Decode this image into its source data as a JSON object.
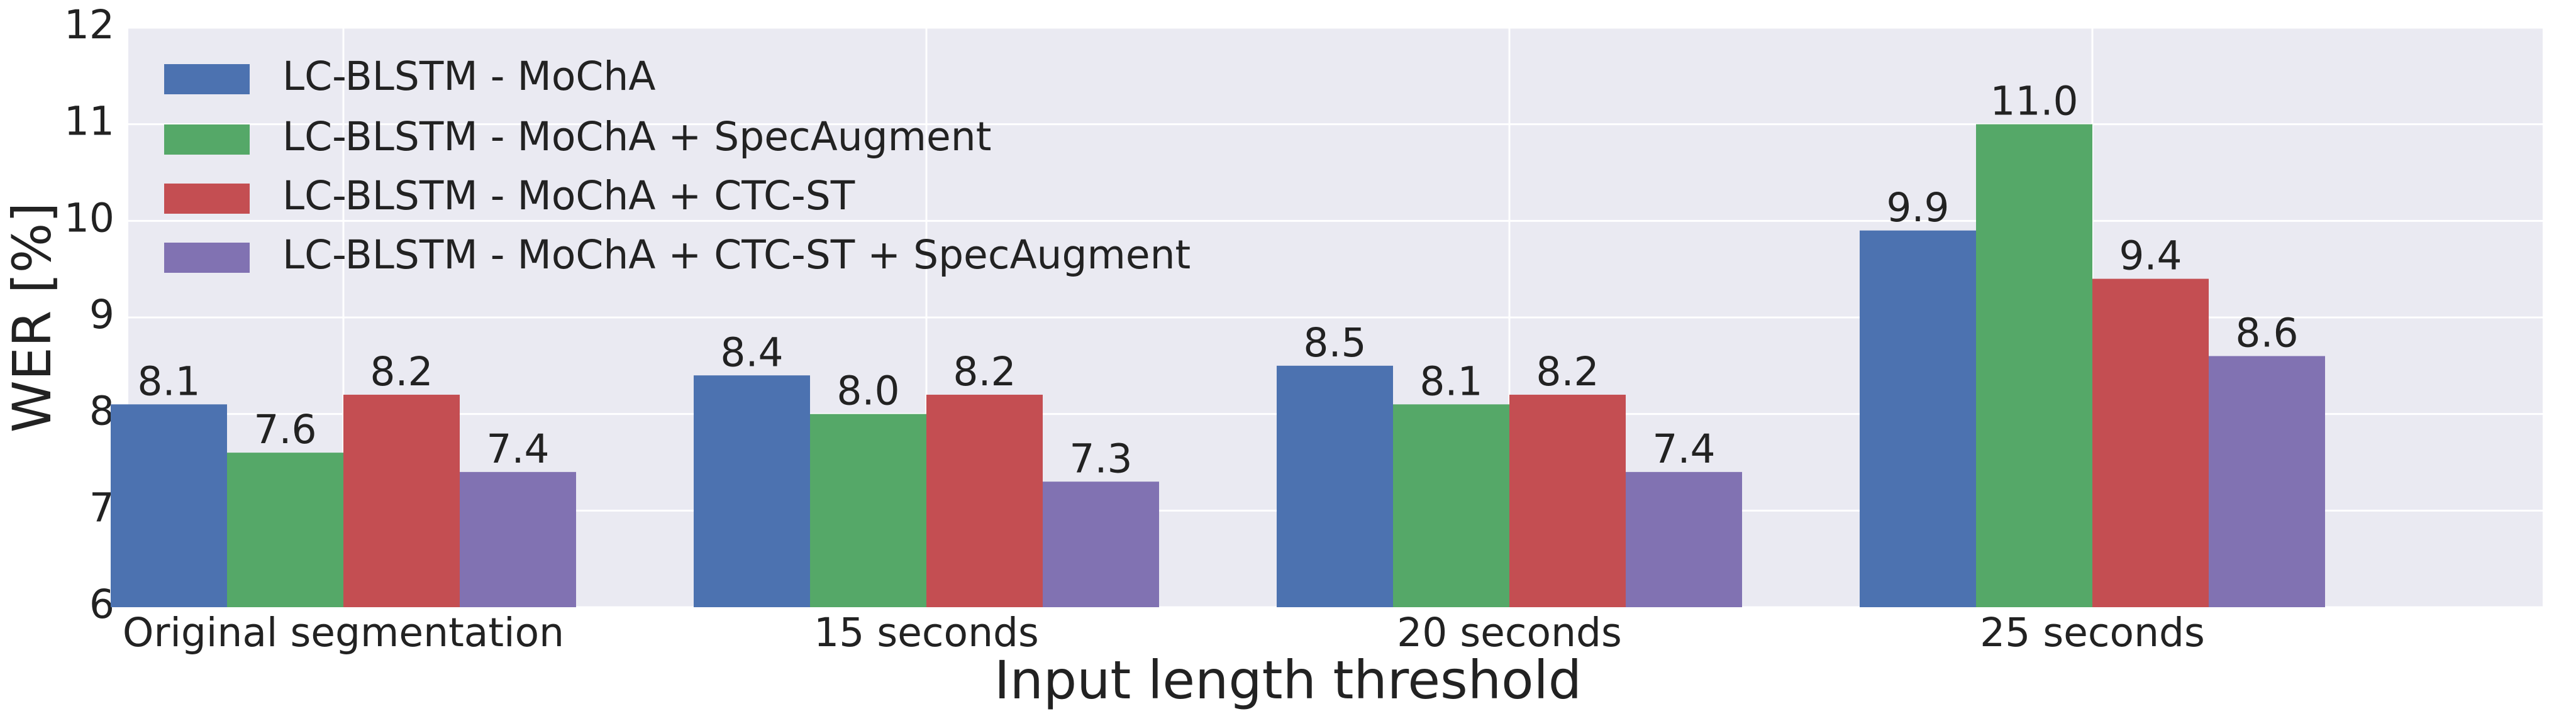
{
  "chart_data": {
    "type": "bar",
    "xlabel": "Input length threshold",
    "ylabel": "WER [%]",
    "categories": [
      "Original segmentation",
      "15 seconds",
      "20 seconds",
      "25 seconds"
    ],
    "series": [
      {
        "name": "LC-BLSTM - MoChA",
        "color": "#4c72b0",
        "values": [
          8.1,
          8.4,
          8.5,
          9.9
        ],
        "value_labels": [
          "8.1",
          "8.4",
          "8.5",
          "9.9"
        ]
      },
      {
        "name": "LC-BLSTM - MoChA + SpecAugment",
        "color": "#55a868",
        "values": [
          7.6,
          8.0,
          8.1,
          11.0
        ],
        "value_labels": [
          "7.6",
          "8.0",
          "8.1",
          "11.0"
        ]
      },
      {
        "name": "LC-BLSTM - MoChA + CTC-ST",
        "color": "#c44e52",
        "values": [
          8.2,
          8.2,
          8.2,
          9.4
        ],
        "value_labels": [
          "8.2",
          "8.2",
          "8.2",
          "9.4"
        ]
      },
      {
        "name": "LC-BLSTM - MoChA + CTC-ST + SpecAugment",
        "color": "#8172b2",
        "values": [
          7.4,
          7.3,
          7.4,
          8.6
        ],
        "value_labels": [
          "7.4",
          "7.3",
          "7.4",
          "8.6"
        ]
      }
    ],
    "ylim": [
      6,
      12
    ],
    "yticks": [
      6,
      7,
      8,
      9,
      10,
      11,
      12
    ],
    "grid": true,
    "legend": "upper left"
  }
}
